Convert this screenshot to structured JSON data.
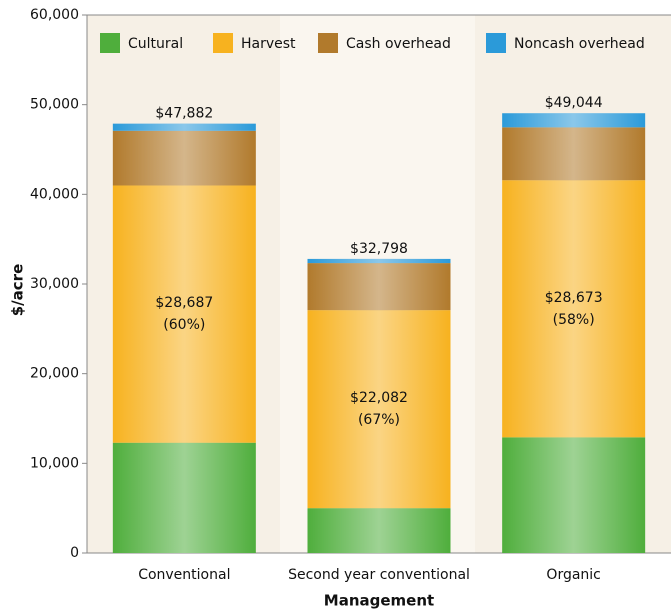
{
  "chart_data": {
    "type": "stacked_bar",
    "categories": [
      "Conventional",
      "Second year conventional",
      "Organic"
    ],
    "series": [
      {
        "name": "Cultural",
        "color": "#4fae3c",
        "values": [
          12300,
          5000,
          12900
        ]
      },
      {
        "name": "Harvest",
        "color": "#f7b21f",
        "values": [
          28687,
          22082,
          28673
        ],
        "value_labels": [
          "$28,687",
          "$22,082",
          "$28,673"
        ],
        "share_labels": [
          "(60%)",
          "(67%)",
          "(58%)"
        ]
      },
      {
        "name": "Cash overhead",
        "color": "#b17a2c",
        "values": [
          6100,
          5250,
          5900
        ]
      },
      {
        "name": "Noncash overhead",
        "color": "#2b9ad9",
        "values": [
          795,
          466,
          1571
        ]
      }
    ],
    "totals": [
      47882,
      32798,
      49044
    ],
    "total_labels": [
      "$47,882",
      "$32,798",
      "$49,044"
    ],
    "ylim": [
      0,
      60000
    ],
    "yticks": [
      0,
      {
        "value": 10000,
        "label": "10,000"
      },
      {
        "value": 20000,
        "label": "20,000"
      },
      {
        "value": 30000,
        "label": "30,000"
      },
      {
        "value": 40000,
        "label": "40,000"
      },
      {
        "value": 50000,
        "label": "50,000"
      },
      {
        "value": 60000,
        "label": "60,000"
      }
    ],
    "ylabel": "$/acre",
    "xlabel": "Management",
    "legend": "top"
  }
}
